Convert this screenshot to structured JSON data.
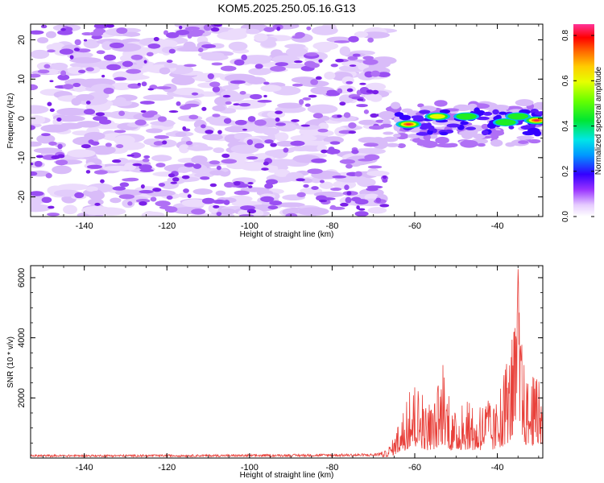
{
  "title": "KOM5.2025.250.05.16.G13",
  "chart_data": [
    {
      "type": "heatmap",
      "title": "KOM5.2025.250.05.16.G13",
      "xlabel": "Height of straight line (km)",
      "ylabel": "Frequency (Hz)",
      "xlim": [
        -153,
        -29
      ],
      "ylim": [
        -25,
        24
      ],
      "x_ticks": [
        -140,
        -120,
        -100,
        -80,
        -60,
        -40
      ],
      "y_ticks": [
        -20,
        -10,
        0,
        10,
        20
      ],
      "x_tick_labels": [
        "-140",
        "-120",
        "-100",
        "-80",
        "-60",
        "-40"
      ],
      "y_tick_labels": [
        "-20",
        "-10",
        "0",
        "10",
        "20"
      ],
      "noise_region_x": [
        -153,
        -67
      ],
      "noise_level": 0.15,
      "signal_region_x": [
        -67,
        -29
      ],
      "signal_peaks": [
        {
          "x": -61.5,
          "y": -1.5,
          "amp": 0.8
        },
        {
          "x": -54.5,
          "y": 0.5,
          "amp": 0.55
        },
        {
          "x": -47.5,
          "y": 0.5,
          "amp": 0.5
        },
        {
          "x": -38,
          "y": -1,
          "amp": 0.45
        },
        {
          "x": -35,
          "y": 0.5,
          "amp": 0.4
        },
        {
          "x": -30.5,
          "y": -0.5,
          "amp": 0.85
        }
      ],
      "colorbar": {
        "label": "Normalized spectral amplitude",
        "range": [
          0,
          0.85
        ],
        "ticks": [
          0.0,
          0.2,
          0.4,
          0.6,
          0.8
        ],
        "tick_labels": [
          "0.0",
          "0.2",
          "0.4",
          "0.6",
          "0.8"
        ],
        "colormap": "rainbow"
      }
    },
    {
      "type": "line",
      "xlabel": "Height of straight line (km)",
      "ylabel": "SNR (10 * v/v)",
      "xlim": [
        -153,
        -29
      ],
      "ylim": [
        0,
        6400
      ],
      "x_ticks": [
        -140,
        -120,
        -100,
        -80,
        -60,
        -40
      ],
      "y_ticks": [
        2000,
        4000,
        6000
      ],
      "x_tick_labels": [
        "-140",
        "-120",
        "-100",
        "-80",
        "-60",
        "-40"
      ],
      "y_tick_labels": [
        "2000",
        "4000",
        "6000"
      ],
      "color": "#e8403a",
      "envelope": {
        "x": [
          -153,
          -100,
          -70,
          -67,
          -65,
          -63,
          -61,
          -59,
          -57,
          -55,
          -53,
          -51,
          -49,
          -47,
          -45,
          -43,
          -41,
          -39,
          -37,
          -36,
          -35,
          -34,
          -33,
          -31,
          -29
        ],
        "y": [
          110,
          120,
          150,
          250,
          700,
          1400,
          2300,
          2400,
          1700,
          2000,
          3200,
          1400,
          1700,
          1900,
          1400,
          2100,
          1600,
          2400,
          3600,
          4200,
          6300,
          3600,
          2700,
          2700,
          2400
        ]
      }
    }
  ]
}
